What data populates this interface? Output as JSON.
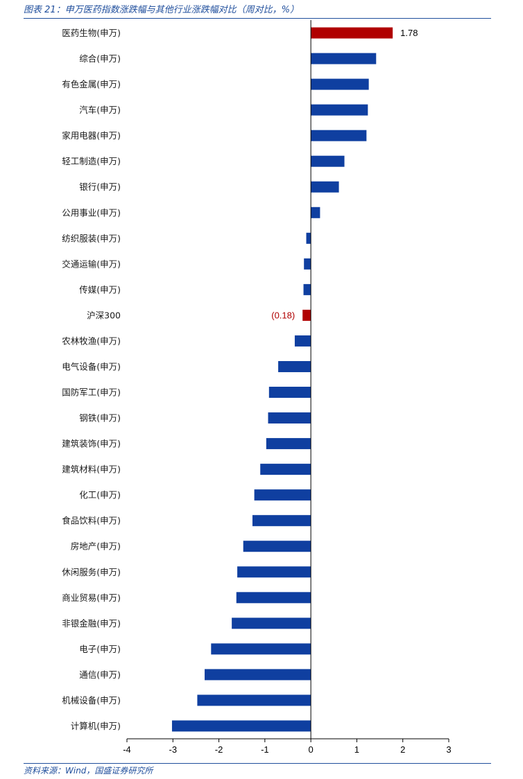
{
  "header": {
    "title": "图表 21：申万医药指数涨跌幅与其他行业涨跌幅对比（周对比，%）"
  },
  "footer": {
    "source": "资料来源：Wind，国盛证券研究所"
  },
  "colors": {
    "highlight": "#b00000",
    "bar": "#0f3fa0",
    "brand_blue": "#1f4e9c"
  },
  "chart_data": {
    "type": "bar",
    "orientation": "horizontal",
    "categories": [
      "医药生物(申万)",
      "综合(申万)",
      "有色金属(申万)",
      "汽车(申万)",
      "家用电器(申万)",
      "轻工制造(申万)",
      "银行(申万)",
      "公用事业(申万)",
      "纺织服装(申万)",
      "交通运输(申万)",
      "传媒(申万)",
      "沪深300",
      "农林牧渔(申万)",
      "电气设备(申万)",
      "国防军工(申万)",
      "钢铁(申万)",
      "建筑装饰(申万)",
      "建筑材料(申万)",
      "化工(申万)",
      "食品饮料(申万)",
      "房地产(申万)",
      "休闲服务(申万)",
      "商业贸易(申万)",
      "非银金融(申万)",
      "电子(申万)",
      "通信(申万)",
      "机械设备(申万)",
      "计算机(申万)"
    ],
    "values": [
      1.78,
      1.42,
      1.26,
      1.24,
      1.21,
      0.73,
      0.61,
      0.2,
      -0.1,
      -0.15,
      -0.16,
      -0.18,
      -0.35,
      -0.71,
      -0.91,
      -0.93,
      -0.97,
      -1.1,
      -1.23,
      -1.27,
      -1.47,
      -1.6,
      -1.62,
      -1.72,
      -2.17,
      -2.31,
      -2.47,
      -3.02
    ],
    "highlighted": [
      "医药生物(申万)",
      "沪深300"
    ],
    "data_labels": [
      {
        "category": "医药生物(申万)",
        "text": "1.78"
      },
      {
        "category": "沪深300",
        "text": "(0.18)"
      }
    ],
    "xlim": [
      -4,
      3
    ],
    "xticks": [
      -4,
      -3,
      -2,
      -1,
      0,
      1,
      2,
      3
    ],
    "title": "",
    "xlabel": "",
    "ylabel": "",
    "grid": false,
    "legend": "none"
  }
}
